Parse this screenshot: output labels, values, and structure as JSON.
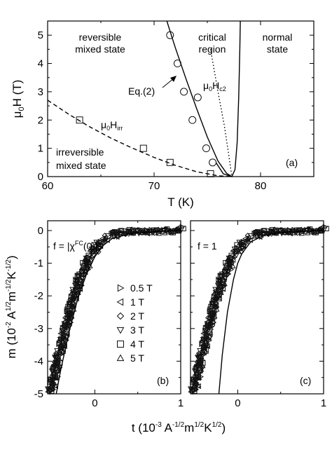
{
  "chart_data": [
    {
      "panel_label": "(a)",
      "type": "scatter",
      "xlabel": "T (K)",
      "ylabel_main": "μ",
      "ylabel_sub": "0",
      "ylabel_rest": "H (T)",
      "xlim": [
        60,
        85
      ],
      "ylim": [
        0,
        5.5
      ],
      "xticks": [
        60,
        70,
        80
      ],
      "yticks": [
        0,
        1,
        2,
        3,
        4,
        5
      ],
      "annotations": {
        "reversible_line1": "reversible",
        "reversible_line2": "mixed state",
        "critical_line1": "critical",
        "critical_line2": "region",
        "normal_line1": "normal",
        "normal_line2": "state",
        "irreversible_line1": "irreversible",
        "irreversible_line2": "mixed state",
        "eq_label": "Eq.(2)",
        "hirr_main": "μ",
        "hirr_sub": "0",
        "hirr_H": "H",
        "hirr_sub2": "irr",
        "hc2_main": "μ",
        "hc2_sub": "0",
        "hc2_H": "H",
        "hc2_sub2": "c2"
      },
      "series": [
        {
          "name": "",
          "marker": "circle",
          "x": [
            71.5,
            72.2,
            72.8,
            73.6,
            74.1,
            74.9,
            75.5
          ],
          "y": [
            5.0,
            4.0,
            3.0,
            2.0,
            2.8,
            1.0,
            0.5
          ]
        },
        {
          "name": "",
          "marker": "square",
          "x": [
            63.0,
            69.0,
            71.5,
            75.3
          ],
          "y": [
            2.0,
            1.0,
            0.5,
            0.1
          ]
        }
      ],
      "curves": {
        "eq2_line": {
          "style": "solid",
          "x": [
            71.2,
            72.0,
            73.0,
            74.0,
            75.0,
            76.0,
            76.8,
            77.3
          ],
          "y": [
            5.5,
            4.55,
            3.45,
            2.4,
            1.4,
            0.55,
            0.12,
            0.0
          ]
        },
        "hirr_line": {
          "style": "dashed",
          "x": [
            60,
            62,
            64,
            66,
            68,
            70,
            72,
            74,
            76,
            77.3
          ],
          "y": [
            2.7,
            2.2,
            1.75,
            1.35,
            1.0,
            0.68,
            0.4,
            0.17,
            0.03,
            0.0
          ]
        },
        "hc2_line": {
          "style": "dotted",
          "x": [
            75.3,
            76.0,
            76.6,
            77.0,
            77.3
          ],
          "y": [
            4.5,
            3.0,
            1.8,
            0.8,
            0.0
          ]
        },
        "boundary_line": {
          "style": "solid",
          "x": [
            75.8,
            76.5,
            77.3,
            77.6,
            77.8,
            77.95,
            78.05,
            78.1
          ],
          "y": [
            0.5,
            0.1,
            0.0,
            0.25,
            1.2,
            2.8,
            4.5,
            5.5
          ]
        }
      }
    },
    {
      "panel_label": "(b)",
      "type": "scatter",
      "xlabel_main": "t (10",
      "xlabel_exp1": "-3",
      "xlabel_mid1": " A",
      "xlabel_exp2": "-1/2",
      "xlabel_mid2": "m",
      "xlabel_exp3": "1/2",
      "xlabel_mid3": "K",
      "xlabel_exp4": "1/2",
      "xlabel_end": ")",
      "ylabel_main": "m (10",
      "ylabel_exp1": "-2",
      "ylabel_mid1": " A",
      "ylabel_exp2": "1/2",
      "ylabel_mid2": "m",
      "ylabel_exp3": "-1/2",
      "ylabel_mid3": "K",
      "ylabel_exp4": "-1/2",
      "ylabel_end": ")",
      "xlim": [
        -0.55,
        1.0
      ],
      "ylim": [
        -5.0,
        0.3
      ],
      "xticks": [
        0,
        1
      ],
      "yticks": [
        0,
        -1,
        -2,
        -3,
        -4,
        -5
      ],
      "f_label": "f = |χ",
      "f_sup": "FC",
      "f_end": "(0)|",
      "legend": {
        "placement": "center",
        "entries": [
          {
            "label": "0.5 T",
            "marker": "triangle-right"
          },
          {
            "label": "1 T",
            "marker": "triangle-left"
          },
          {
            "label": "2 T",
            "marker": "diamond"
          },
          {
            "label": "3 T",
            "marker": "triangle-down"
          },
          {
            "label": "4 T",
            "marker": "square"
          },
          {
            "label": "5 T",
            "marker": "triangle-up"
          }
        ]
      },
      "scaling_curve": {
        "x": [
          -0.45,
          -0.4,
          -0.3,
          -0.2,
          -0.1,
          0.0,
          0.1,
          0.2,
          0.4,
          0.6,
          0.8,
          1.0
        ],
        "y": [
          -5.0,
          -4.3,
          -3.1,
          -2.1,
          -1.35,
          -0.8,
          -0.45,
          -0.25,
          -0.1,
          -0.05,
          -0.02,
          0.0
        ]
      },
      "data_curve": {
        "x": [
          -0.52,
          -0.45,
          -0.35,
          -0.25,
          -0.15,
          -0.05,
          0.05,
          0.15,
          0.3,
          0.5,
          0.75,
          1.0
        ],
        "y": [
          -5.0,
          -4.2,
          -3.1,
          -2.1,
          -1.3,
          -0.75,
          -0.4,
          -0.2,
          -0.07,
          -0.02,
          0.0,
          0.02
        ]
      }
    },
    {
      "panel_label": "(c)",
      "type": "scatter",
      "xlim": [
        -0.55,
        1.0
      ],
      "ylim": [
        -5.0,
        0.3
      ],
      "xticks": [
        0,
        1
      ],
      "f_label": "f = 1",
      "scaling_curve": {
        "x": [
          -0.22,
          -0.18,
          -0.12,
          -0.05,
          0.0,
          0.05,
          0.15,
          0.3,
          0.5,
          0.75,
          1.0
        ],
        "y": [
          -5.0,
          -3.8,
          -2.5,
          -1.5,
          -1.0,
          -0.7,
          -0.35,
          -0.15,
          -0.06,
          -0.02,
          0.0
        ]
      },
      "data_curve": {
        "x": [
          -0.52,
          -0.45,
          -0.35,
          -0.25,
          -0.15,
          -0.05,
          0.05,
          0.15,
          0.3,
          0.5,
          0.75,
          1.0
        ],
        "y": [
          -5.0,
          -4.2,
          -3.1,
          -2.1,
          -1.3,
          -0.75,
          -0.4,
          -0.2,
          -0.07,
          -0.02,
          0.0,
          0.02
        ]
      }
    }
  ]
}
